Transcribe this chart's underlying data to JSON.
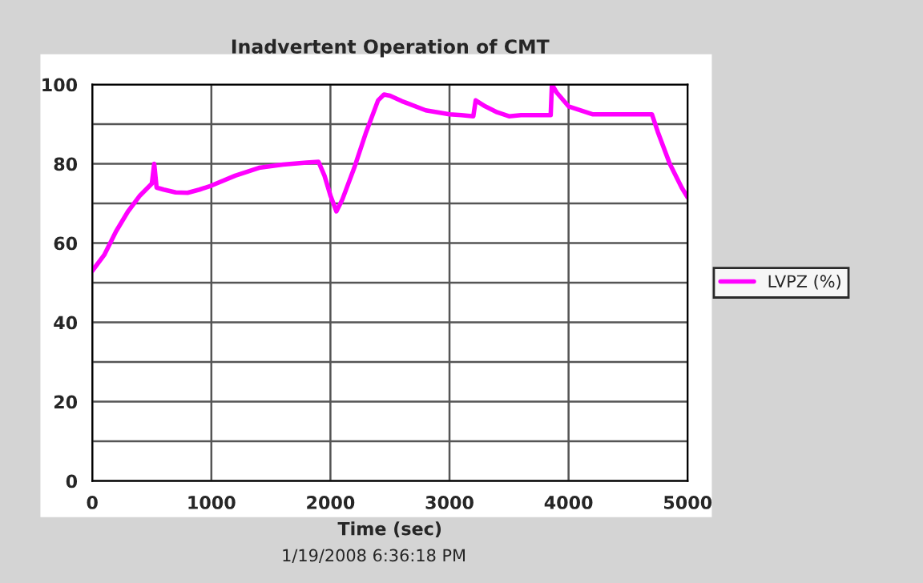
{
  "chart_data": {
    "type": "line",
    "title": "Inadvertent Operation of CMT",
    "xlabel": "Time (sec)",
    "annotations": [
      "1/19/2008 6:36:18 PM"
    ],
    "x": [
      0,
      100,
      200,
      300,
      400,
      500,
      520,
      540,
      600,
      700,
      800,
      900,
      1000,
      1200,
      1400,
      1600,
      1800,
      1900,
      1950,
      2000,
      2050,
      2100,
      2200,
      2300,
      2400,
      2450,
      2500,
      2600,
      2800,
      3000,
      3100,
      3200,
      3220,
      3300,
      3400,
      3500,
      3600,
      3700,
      3850,
      3860,
      3900,
      4000,
      4200,
      4400,
      4600,
      4700,
      4750,
      4850,
      4950,
      5000
    ],
    "series": [
      {
        "name": "LVPZ (%)",
        "color": "#ff00ff",
        "values": [
          53,
          57,
          63,
          68,
          72,
          75,
          80,
          74,
          73.5,
          72.8,
          72.7,
          73.5,
          74.5,
          77,
          79,
          79.8,
          80.3,
          80.5,
          77,
          72,
          68,
          71,
          79,
          88,
          96,
          97.5,
          97.2,
          95.8,
          93.5,
          92.5,
          92.3,
          92,
          96,
          94.5,
          93,
          92,
          92.3,
          92.3,
          92.3,
          100,
          98,
          94.5,
          92.5,
          92.5,
          92.5,
          92.5,
          88,
          80,
          74,
          71.5
        ]
      }
    ],
    "xlim": [
      0,
      5000
    ],
    "xticks": [
      0,
      1000,
      2000,
      3000,
      4000,
      5000
    ],
    "ylim": [
      0,
      100
    ],
    "yticks": [
      0,
      {
        "value": 10,
        "label": null
      },
      20,
      {
        "value": 30,
        "label": null
      },
      40,
      {
        "value": 50,
        "label": null
      },
      60,
      {
        "value": 70,
        "label": null
      },
      80,
      {
        "value": 90,
        "label": null
      },
      100
    ],
    "grid": true,
    "legend": "right",
    "marker": "none",
    "line_style": "solid"
  }
}
